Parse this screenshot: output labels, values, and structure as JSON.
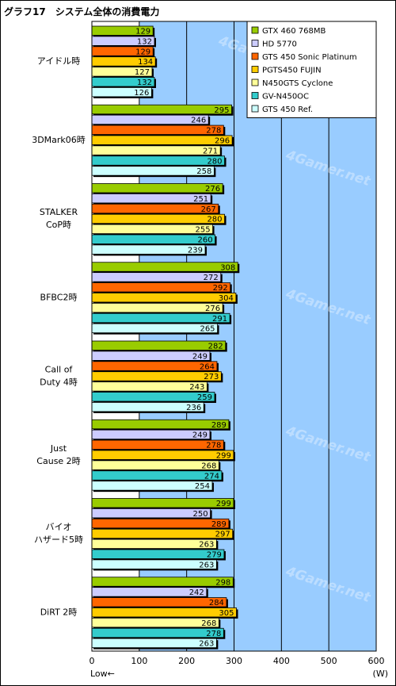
{
  "chart_data": {
    "type": "bar",
    "orientation": "horizontal",
    "title": "グラフ17　システム全体の消費電力",
    "categories": [
      "アイドル時",
      "3DMark06時",
      "STALKER\nCoP時",
      "BFBC2時",
      "Call of\nDuty 4時",
      "Just\nCause 2時",
      "バイオ\nハザード5時",
      "DiRT 2時"
    ],
    "series": [
      {
        "name": "GTX 460 768MB",
        "color": "#99cc00",
        "values": [
          129,
          295,
          276,
          308,
          282,
          289,
          299,
          298
        ]
      },
      {
        "name": "HD 5770",
        "color": "#ccccff",
        "values": [
          132,
          246,
          251,
          272,
          249,
          249,
          250,
          242
        ]
      },
      {
        "name": "GTS 450 Sonic Platinum",
        "color": "#ff6600",
        "values": [
          129,
          278,
          267,
          292,
          264,
          278,
          289,
          284
        ]
      },
      {
        "name": "PGTS450 FUJIN",
        "color": "#ffcc00",
        "values": [
          134,
          296,
          280,
          304,
          273,
          299,
          297,
          305
        ]
      },
      {
        "name": "N450GTS Cyclone",
        "color": "#ffff99",
        "values": [
          127,
          271,
          255,
          276,
          243,
          268,
          263,
          268
        ]
      },
      {
        "name": "GV-N450OC",
        "color": "#33cccc",
        "values": [
          132,
          280,
          260,
          291,
          259,
          274,
          279,
          278
        ]
      },
      {
        "name": "GTS 450 Ref.",
        "color": "#ccffff",
        "values": [
          126,
          258,
          239,
          265,
          236,
          254,
          263,
          263
        ]
      }
    ],
    "xlim": [
      0,
      600
    ],
    "xticks": [
      0,
      100,
      200,
      300,
      400,
      500,
      600
    ],
    "xlabel_left": "Low←",
    "xlabel_right": "(W)",
    "grid": true,
    "legend_position": "top-right",
    "plot_background": "#99ccff"
  },
  "watermark": "4Gamer.net"
}
